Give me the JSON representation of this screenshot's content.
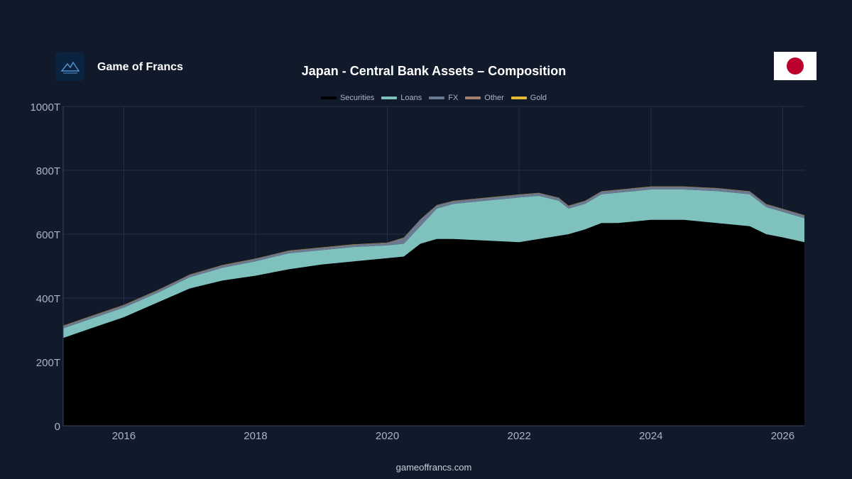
{
  "brand": {
    "name": "Game of Francs",
    "logo_icon": "mountain-logo-icon"
  },
  "title": "Japan - Central Bank Assets – Composition",
  "flag": {
    "name": "japan-flag",
    "field": "#ffffff",
    "disc": "#bc002d"
  },
  "footer": "gameoffrancs.com",
  "chart_data": {
    "type": "area",
    "stacked": true,
    "title": "Japan - Central Bank Assets – Composition",
    "xlabel": "",
    "ylabel": "",
    "xlim": [
      2015.08,
      2026.33
    ],
    "ylim": [
      0,
      1000
    ],
    "y_unit": "T",
    "grid": true,
    "legend_position": "top-center",
    "x_ticks": [
      {
        "value": 2016,
        "label": "2016"
      },
      {
        "value": 2018,
        "label": "2018"
      },
      {
        "value": 2020,
        "label": "2020"
      },
      {
        "value": 2022,
        "label": "2022"
      },
      {
        "value": 2024,
        "label": "2024"
      },
      {
        "value": 2026,
        "label": "2026"
      }
    ],
    "y_ticks": [
      {
        "value": 0,
        "label": "0"
      },
      {
        "value": 200,
        "label": "200T"
      },
      {
        "value": 400,
        "label": "400T"
      },
      {
        "value": 600,
        "label": "600T"
      },
      {
        "value": 800,
        "label": "800T"
      },
      {
        "value": 1000,
        "label": "1000T"
      }
    ],
    "x": [
      2015.08,
      2015.5,
      2016.0,
      2016.5,
      2017.0,
      2017.5,
      2018.0,
      2018.5,
      2019.0,
      2019.5,
      2020.0,
      2020.25,
      2020.5,
      2020.75,
      2021.0,
      2021.5,
      2022.0,
      2022.3,
      2022.6,
      2022.75,
      2023.0,
      2023.25,
      2023.5,
      2024.0,
      2024.5,
      2025.0,
      2025.5,
      2025.75,
      2026.0,
      2026.33
    ],
    "series": [
      {
        "name": "Securities",
        "color": "#000000",
        "values": [
          275,
          305,
          340,
          385,
          430,
          455,
          470,
          490,
          505,
          515,
          525,
          530,
          570,
          585,
          585,
          580,
          575,
          585,
          595,
          600,
          615,
          635,
          635,
          645,
          645,
          635,
          625,
          600,
          590,
          575
        ]
      },
      {
        "name": "Loans",
        "color": "#7fc2bd",
        "values": [
          30,
          30,
          30,
          30,
          35,
          40,
          45,
          50,
          45,
          45,
          40,
          40,
          55,
          95,
          110,
          125,
          140,
          135,
          110,
          80,
          80,
          90,
          95,
          95,
          95,
          100,
          100,
          85,
          80,
          75
        ]
      },
      {
        "name": "FX",
        "color": "#6b7a91",
        "values": [
          7,
          7,
          7,
          7,
          7,
          7,
          7,
          7,
          7,
          7,
          7,
          18,
          20,
          10,
          8,
          8,
          8,
          8,
          8,
          8,
          8,
          8,
          8,
          8,
          8,
          8,
          8,
          8,
          8,
          8
        ]
      },
      {
        "name": "Other",
        "color": "#a0826d",
        "values": [
          1,
          1,
          1,
          1,
          1,
          1,
          1,
          1,
          1,
          1,
          1,
          1,
          1,
          1,
          1,
          1,
          1,
          1,
          1,
          1,
          1,
          1,
          1,
          1,
          1,
          1,
          1,
          1,
          1,
          1
        ]
      },
      {
        "name": "Gold",
        "color": "#e6b833",
        "values": [
          0.5,
          0.5,
          0.5,
          0.5,
          0.5,
          0.5,
          0.5,
          0.5,
          0.5,
          0.5,
          0.5,
          0.5,
          0.5,
          0.5,
          0.5,
          0.5,
          0.5,
          0.5,
          0.5,
          0.5,
          0.5,
          0.5,
          0.5,
          0.5,
          0.5,
          0.5,
          0.5,
          0.5,
          0.5,
          0.5
        ]
      }
    ]
  }
}
